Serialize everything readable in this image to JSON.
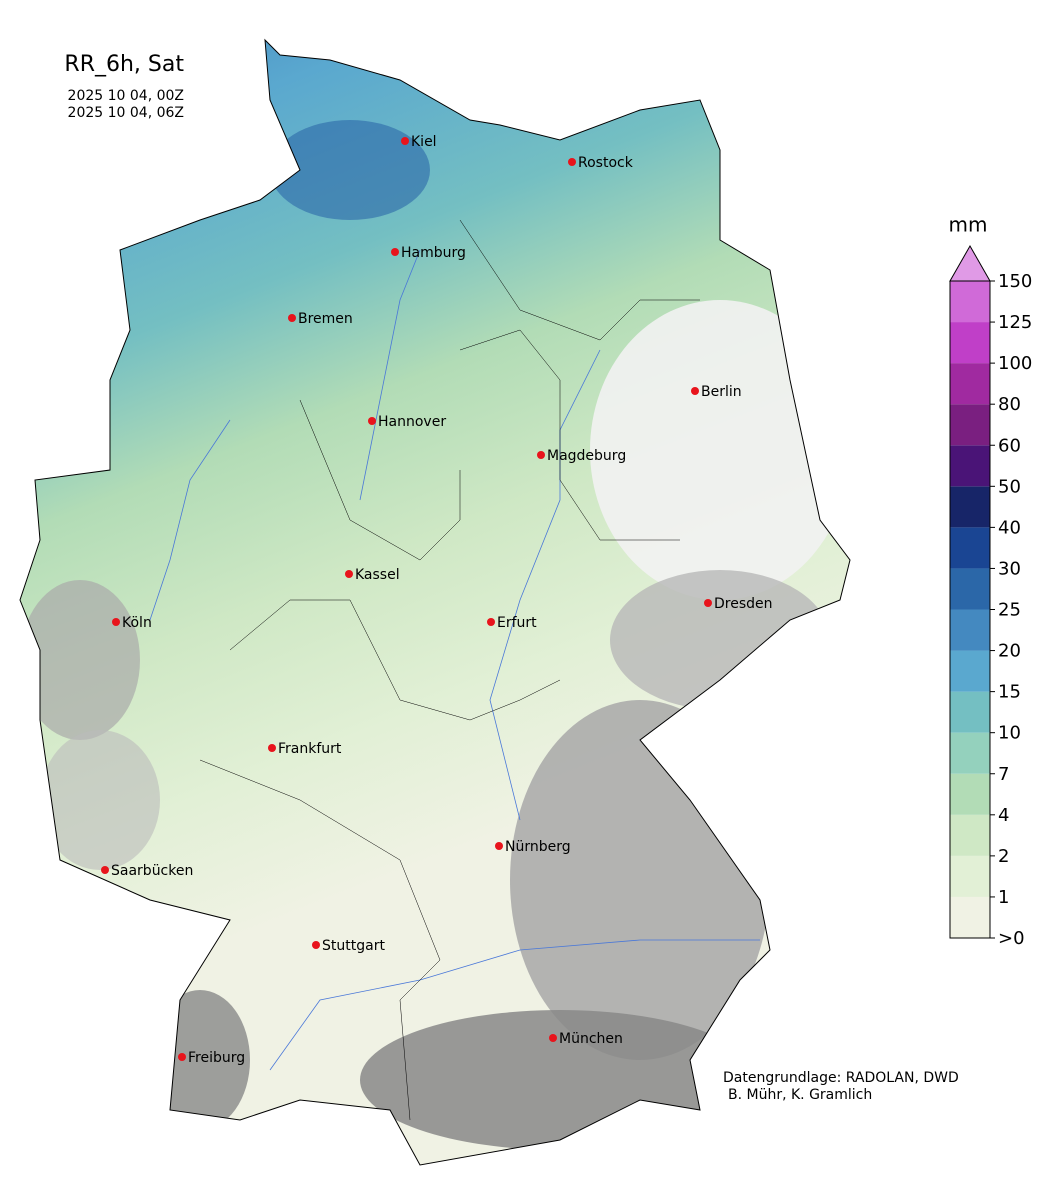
{
  "title": "RR_6h, Sat",
  "dates": [
    "2025 10 04, 00Z",
    "2025 10 04, 06Z"
  ],
  "colorbar": {
    "unit": "mm",
    "labels": [
      ">0",
      "1",
      "2",
      "4",
      "7",
      "10",
      "15",
      "20",
      "25",
      "30",
      "40",
      "50",
      "60",
      "80",
      "100",
      "125",
      "150"
    ],
    "colors": [
      "#f0f2e4",
      "#e2f0d6",
      "#cfe8c5",
      "#b2dcb6",
      "#94d1bd",
      "#74bfc2",
      "#5aa8cf",
      "#4489c0",
      "#2b67a8",
      "#1a4593",
      "#172568",
      "#4a1477",
      "#7a1f80",
      "#a02aa0",
      "#c03fc8",
      "#d06ad8"
    ],
    "extend_color": "#e09ae6"
  },
  "cities": [
    "Kiel",
    "Rostock",
    "Hamburg",
    "Bremen",
    "Berlin",
    "Hannover",
    "Magdeburg",
    "Kassel",
    "Köln",
    "Erfurt",
    "Dresden",
    "Frankfurt",
    "Nürnberg",
    "Saarbücken",
    "Stuttgart",
    "Freiburg",
    "München"
  ],
  "credits": [
    "Datengrundlage: RADOLAN, DWD",
    "B. Mühr, K. Gramlich"
  ]
}
